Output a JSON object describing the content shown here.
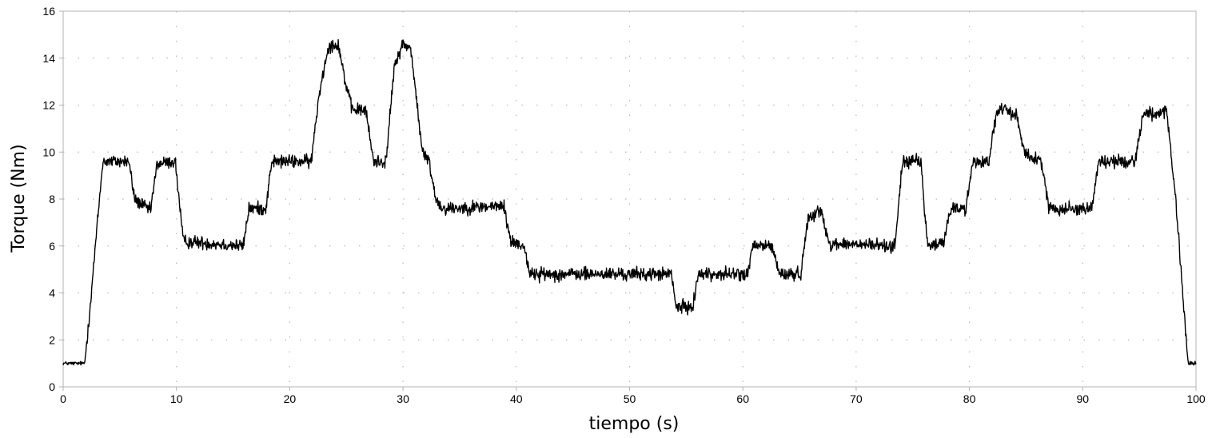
{
  "chart_data": {
    "type": "line",
    "title": "",
    "xlabel": "tiempo (s)",
    "ylabel": "Torque (Nm)",
    "xlim": [
      0,
      100
    ],
    "ylim": [
      0,
      16
    ],
    "x_ticks": [
      0,
      10,
      20,
      30,
      40,
      50,
      60,
      70,
      80,
      90,
      100
    ],
    "y_ticks": [
      0,
      2,
      4,
      6,
      8,
      10,
      12,
      14,
      16
    ],
    "x_tick_labels": [
      "0",
      "10",
      "20",
      "30",
      "40",
      "50",
      "60",
      "70",
      "80",
      "90",
      "100"
    ],
    "y_tick_labels": [
      "0",
      "2",
      "4",
      "6",
      "8",
      "10",
      "12",
      "14",
      "16"
    ],
    "grid": "dotted",
    "legend": "none",
    "line_color": "#000000",
    "series": [
      {
        "x": [
          0,
          1.9,
          2.3,
          3.5,
          5.8,
          6.3,
          7.7,
          8.3,
          9.9,
          10.6,
          15.9,
          16.4,
          17.9,
          18.4,
          21.9,
          22.6,
          23.4,
          24.3,
          24.9,
          25.5,
          26.7,
          27.4,
          28.5,
          29.2,
          29.9,
          30.7,
          31.7,
          32.3,
          32.9,
          33.5,
          38.9,
          39.5,
          40.7,
          41.2,
          53.7,
          54.1,
          55.6,
          56.0,
          60.4,
          60.9,
          62.6,
          63.2,
          65.1,
          65.8,
          66.9,
          67.6,
          73.4,
          74.1,
          75.7,
          76.3,
          77.7,
          78.3,
          79.7,
          80.3,
          81.7,
          82.4,
          83.1,
          84.1,
          84.9,
          85.6,
          86.4,
          87.0,
          90.8,
          91.4,
          94.6,
          95.3,
          97.4,
          98.2,
          99.3,
          100
        ],
        "y": [
          1.0,
          1.0,
          3.0,
          9.6,
          9.6,
          8.0,
          7.5,
          9.5,
          9.6,
          6.2,
          6.0,
          7.6,
          7.6,
          9.6,
          9.6,
          12.5,
          14.5,
          14.6,
          13.0,
          11.8,
          11.8,
          9.6,
          9.6,
          13.5,
          14.6,
          14.4,
          10.0,
          9.6,
          8.0,
          7.6,
          7.7,
          6.2,
          6.0,
          4.8,
          4.8,
          3.4,
          3.4,
          4.8,
          4.8,
          6.0,
          6.0,
          4.8,
          4.8,
          7.3,
          7.5,
          6.1,
          6.0,
          9.6,
          9.6,
          6.0,
          6.1,
          7.6,
          7.6,
          9.6,
          9.6,
          11.7,
          11.8,
          11.6,
          10.0,
          9.7,
          9.6,
          7.6,
          7.6,
          9.6,
          9.6,
          11.6,
          11.7,
          8.0,
          1.0,
          1.0
        ]
      }
    ]
  }
}
